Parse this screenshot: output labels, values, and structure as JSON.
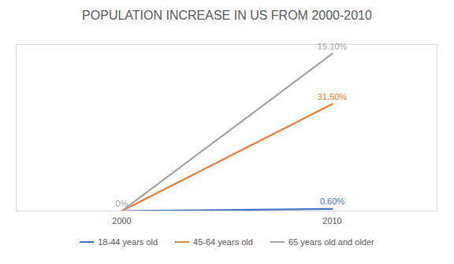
{
  "chart_data": {
    "type": "line",
    "title": "POPULATION INCREASE IN US FROM 2000-2010",
    "categories": [
      "2000",
      "2010"
    ],
    "stacked": true,
    "data_labels": true,
    "tick_labels": "x",
    "ylim": [
      0,
      50
    ],
    "legend": "bottom",
    "series": [
      {
        "name": "18-44 years old",
        "color": "#4472c4",
        "values": [
          0,
          0.6
        ],
        "value_labels": [
          null,
          "0.60%"
        ]
      },
      {
        "name": "45-64 years old",
        "color": "#ed7d31",
        "values": [
          0,
          31.5
        ],
        "value_labels": [
          null,
          "31.50%"
        ]
      },
      {
        "name": "65 years old and older",
        "color": "#a5a5a5",
        "values": [
          0,
          15.1
        ],
        "value_labels": [
          "0%",
          "15.10%"
        ]
      }
    ]
  }
}
